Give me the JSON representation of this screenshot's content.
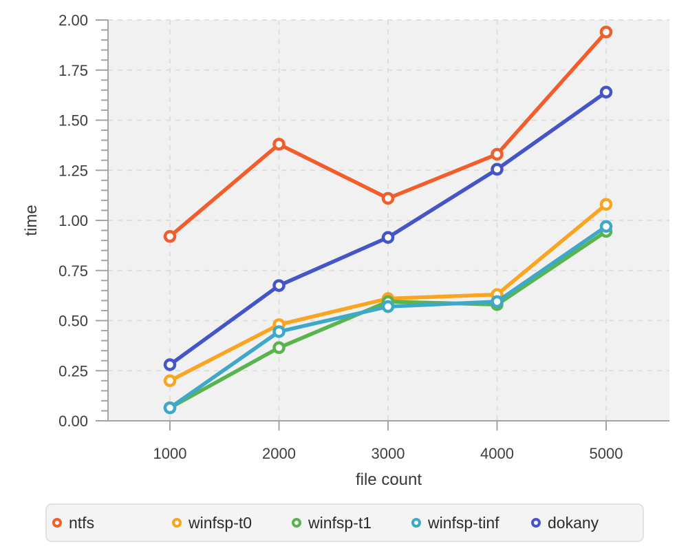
{
  "chart_data": {
    "type": "line",
    "title": "",
    "xlabel": "file count",
    "ylabel": "time",
    "x": [
      1000,
      2000,
      3000,
      4000,
      5000
    ],
    "x_tick_labels": [
      "1000",
      "2000",
      "3000",
      "4000",
      "5000"
    ],
    "y_ticks": [
      0,
      0.25,
      0.5,
      0.75,
      1.0,
      1.25,
      1.5,
      1.75,
      2.0
    ],
    "y_tick_labels": [
      "0.00",
      "0.25",
      "0.50",
      "0.75",
      "1.00",
      "1.25",
      "1.50",
      "1.75",
      "2.00"
    ],
    "ylim": [
      0,
      2.0
    ],
    "y_minor_tick_step": 0.05,
    "grid": "dashed",
    "marker": "open-circle",
    "legend_position": "bottom",
    "series": [
      {
        "name": "ntfs",
        "color": "#f15e2c",
        "values": [
          0.92,
          1.38,
          1.11,
          1.33,
          1.94
        ]
      },
      {
        "name": "winfsp-t0",
        "color": "#f9a522",
        "values": [
          0.2,
          0.48,
          0.61,
          0.63,
          1.08
        ]
      },
      {
        "name": "winfsp-t1",
        "color": "#5ab44e",
        "values": [
          0.065,
          0.365,
          0.595,
          0.58,
          0.945
        ]
      },
      {
        "name": "winfsp-tinf",
        "color": "#3ea8c8",
        "values": [
          0.065,
          0.445,
          0.57,
          0.595,
          0.97
        ]
      },
      {
        "name": "dokany",
        "color": "#4456c7",
        "values": [
          0.28,
          0.675,
          0.915,
          1.255,
          1.64
        ]
      }
    ],
    "colors": {
      "plot_bg": "#f1f1f1",
      "grid": "#dcdcdc",
      "axis": "#a3a3a3",
      "text": "#3d3d3d",
      "legend_bg": "#f4f4f4",
      "legend_border": "#e2e2e2",
      "legend_text": "#2b2b2b"
    }
  }
}
